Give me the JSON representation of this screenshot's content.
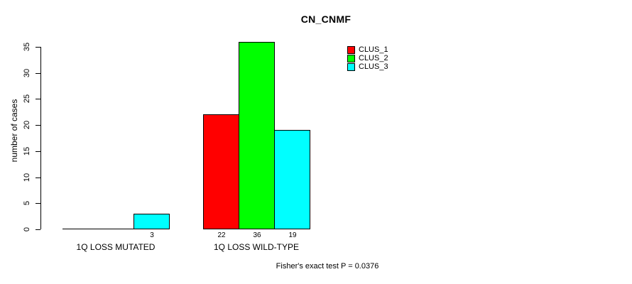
{
  "chart_data": {
    "type": "bar",
    "title": "CN_CNMF",
    "xlabel": "",
    "ylabel": "number of cases",
    "ylim": [
      0,
      35
    ],
    "yticks": [
      0,
      5,
      10,
      15,
      20,
      25,
      30,
      35
    ],
    "grid": false,
    "legend_position": "top-right",
    "categories": [
      "1Q LOSS MUTATED",
      "1Q LOSS WILD-TYPE"
    ],
    "series": [
      {
        "name": "CLUS_1",
        "color": "#FF0000",
        "values": [
          0,
          22
        ]
      },
      {
        "name": "CLUS_2",
        "color": "#00FF00",
        "values": [
          0,
          36
        ]
      },
      {
        "name": "CLUS_3",
        "color": "#00FFFF",
        "values": [
          3,
          19
        ]
      }
    ],
    "bar_value_labels_shown": [
      3,
      22,
      36,
      19
    ],
    "annotation": "Fisher's exact test P = 0.0376"
  }
}
